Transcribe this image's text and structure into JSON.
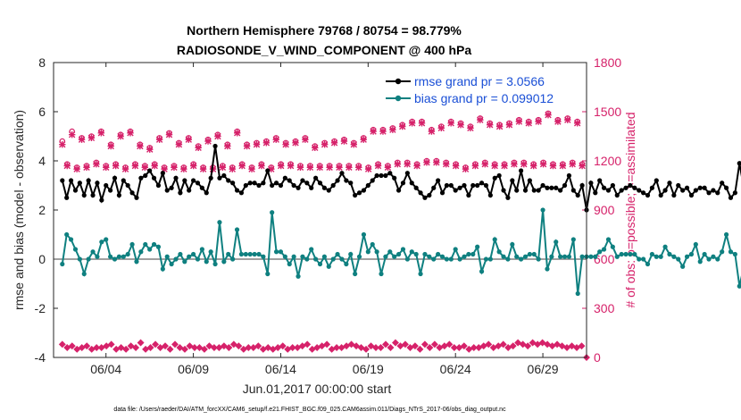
{
  "chart_data": {
    "type": "line",
    "title": "Northern Hemisphere 79768 / 80754 = 98.779%",
    "subtitle": "RADIOSONDE_V_WIND_COMPONENT @ 400 hPa",
    "xlabel": "Jun.01,2017 00:00:00 start",
    "ylabel": "rmse and bias (model - observation)",
    "y2label": "# of obs: o=possible; ×=assimilated",
    "footnote": "data file: /Users/raeder/DAI/ATM_forcXX/CAM6_setup/f.e21.FHIST_BGC.f09_025.CAM6assim.011/Diags_NTrS_2017-06/obs_diag_output.nc",
    "xlim": [
      0.5,
      31
    ],
    "ylim": [
      -4,
      8
    ],
    "y2lim": [
      0,
      1800
    ],
    "x_ticks": [
      3.5,
      8.5,
      13.5,
      18.5,
      23.5,
      28.5
    ],
    "x_tick_labels": [
      "06/04",
      "06/09",
      "06/14",
      "06/19",
      "06/24",
      "06/29"
    ],
    "y_ticks": [
      -4,
      -2,
      0,
      2,
      4,
      6,
      8
    ],
    "y_tick_labels": [
      "-4",
      "-2",
      "0",
      "2",
      "4",
      "6",
      "8"
    ],
    "y2_ticks": [
      0,
      300,
      600,
      900,
      1200,
      1500,
      1800
    ],
    "y2_tick_labels": [
      "0",
      "300",
      "600",
      "900",
      "1200",
      "1500",
      "1800"
    ],
    "grid": false,
    "legend_position": "top-right",
    "colors": {
      "rmse": "#000000",
      "bias": "#0f8080",
      "obs": "#d6226a",
      "legend_text": "#1a4fd6",
      "zero_line": "#a0a0a0"
    },
    "x_step": 0.25,
    "series": [
      {
        "name": "rmse grand pr = 3.0566",
        "color": "#000000",
        "values": [
          3.2,
          2.5,
          3.2,
          2.8,
          3.1,
          2.6,
          3.2,
          2.6,
          3.1,
          2.4,
          3.0,
          2.8,
          3.3,
          2.6,
          3.2,
          3.0,
          2.7,
          2.5,
          3.3,
          3.4,
          3.6,
          3.3,
          3.0,
          3.5,
          2.8,
          2.9,
          3.3,
          2.7,
          3.2,
          2.8,
          3.2,
          3.1,
          2.9,
          2.7,
          3.3,
          4.6,
          3.3,
          3.4,
          3.2,
          3.1,
          2.8,
          2.7,
          3.0,
          3.1,
          3.1,
          3.0,
          3.1,
          3.6,
          3.0,
          3.1,
          3.0,
          3.3,
          3.2,
          3.0,
          2.9,
          3.2,
          3.1,
          2.9,
          3.3,
          3.1,
          2.9,
          2.8,
          3.0,
          3.2,
          3.5,
          3.2,
          3.1,
          2.6,
          2.7,
          2.8,
          3.0,
          3.2,
          3.4,
          3.4,
          3.4,
          3.5,
          3.3,
          2.8,
          3.1,
          3.5,
          3.1,
          2.9,
          2.7,
          2.5,
          2.6,
          2.9,
          3.2,
          2.7,
          3.0,
          3.0,
          2.8,
          2.9,
          3.0,
          2.6,
          3.0,
          3.0,
          3.1,
          3.0,
          2.6,
          3.3,
          3.4,
          2.8,
          2.5,
          3.2,
          2.8,
          3.6,
          2.8,
          3.2,
          2.8,
          2.8,
          3.0,
          2.9,
          2.9,
          2.9,
          2.8,
          3.0,
          3.4,
          2.8,
          2.6,
          3.0,
          2.0,
          3.1,
          2.7,
          3.2,
          2.9,
          2.8,
          3.0,
          2.6,
          2.8,
          2.9,
          3.0,
          2.9,
          2.8,
          2.7,
          2.6,
          2.9,
          3.2,
          2.6,
          2.8,
          3.1,
          2.6,
          3.0,
          2.8,
          2.9,
          2.6,
          2.8,
          2.9,
          2.9,
          2.7,
          2.8,
          2.7,
          3.1,
          2.9,
          2.5,
          2.7,
          3.9,
          2.9,
          2.8,
          3.1,
          3.4,
          3.4,
          3.0,
          2.4,
          3.3,
          4.5,
          2.8,
          2.9,
          2.9,
          2.9,
          3.1,
          3.0,
          2.7,
          3.0,
          2.9,
          2.4,
          2.9,
          2.8,
          2.8,
          2.8,
          3.2,
          2.6,
          2.8,
          2.9,
          3.0,
          2.7,
          3.1,
          3.0,
          2.6,
          2.8,
          2.9,
          2.8,
          2.8,
          2.9,
          2.9,
          2.9,
          2.7,
          2.5,
          2.8,
          3.0,
          3.0,
          2.7,
          2.6,
          2.9,
          2.8,
          2.9,
          3.0,
          3.0,
          3.1,
          3.0,
          3.0,
          2.9,
          2.7,
          2.9,
          2.8,
          3.1,
          2.9,
          3.2,
          3.4,
          2.9,
          3.1,
          3.0,
          2.8,
          2.7,
          2.6
        ]
      },
      {
        "name": "bias grand pr = 0.099012",
        "color": "#0f8080",
        "values": [
          -0.2,
          1.0,
          0.8,
          0.4,
          0.0,
          -0.6,
          0.0,
          0.3,
          0.1,
          0.7,
          0.8,
          0.1,
          0.0,
          0.1,
          0.1,
          0.2,
          0.6,
          -0.1,
          0.3,
          0.6,
          0.4,
          0.6,
          0.5,
          -0.4,
          0.1,
          -0.2,
          0.0,
          0.2,
          -0.1,
          0.1,
          0.2,
          0.0,
          0.4,
          -0.1,
          0.3,
          -0.2,
          1.5,
          -0.1,
          0.2,
          0.0,
          1.2,
          0.2,
          0.2,
          0.2,
          0.2,
          0.2,
          0.1,
          -0.6,
          1.9,
          0.3,
          0.3,
          0.1,
          -0.2,
          0.1,
          -0.7,
          0.1,
          0.0,
          0.4,
          0.0,
          -0.2,
          0.1,
          -0.3,
          0.0,
          0.2,
          0.0,
          -0.2,
          0.2,
          -0.6,
          0.1,
          1.0,
          0.3,
          0.6,
          0.3,
          -0.6,
          0.1,
          0.3,
          0.1,
          0.2,
          0.4,
          0.0,
          0.3,
          0.2,
          -0.6,
          0.2,
          0.1,
          0.0,
          0.2,
          0.1,
          0.0,
          0.0,
          0.4,
          0.0,
          0.1,
          0.2,
          0.2,
          0.5,
          -0.5,
          0.0,
          0.0,
          0.8,
          0.3,
          0.1,
          0.0,
          0.6,
          0.1,
          0.0,
          0.1,
          0.2,
          0.2,
          0.0,
          2.0,
          -0.4,
          0.1,
          0.7,
          0.1,
          0.1,
          0.1,
          0.8,
          -1.4,
          0.1,
          0.1,
          0.1,
          0.1,
          0.3,
          0.4,
          0.8,
          0.5,
          0.1,
          0.2,
          0.2,
          0.2,
          0.2,
          0.0,
          0.0,
          -0.2,
          0.2,
          0.1,
          0.1,
          0.5,
          0.2,
          0.1,
          0.0,
          -0.3,
          0.1,
          0.2,
          0.6,
          -0.1,
          0.2,
          0.0,
          0.1,
          0.0,
          0.3,
          1.0,
          0.3,
          0.2,
          -1.1,
          -0.3,
          0.3,
          0.5,
          1.4,
          0.3,
          0.1,
          0.1,
          0.2,
          -0.1,
          0.3,
          0.2,
          0.1,
          0.4,
          1.1,
          -0.1,
          0.6,
          0.3,
          0.1,
          -0.2,
          -0.2,
          0.3,
          0.1,
          0.2,
          0.0,
          0.3,
          0.3,
          0.2,
          0.1,
          -0.1,
          0.1,
          0.2,
          0.4,
          0.0,
          0.1,
          0.0,
          0.7,
          0.1,
          0.2,
          0.1,
          0.0,
          0.2,
          0.2,
          -0.1,
          0.2,
          0.0,
          0.4,
          0.3,
          0.1,
          0.1,
          0.0,
          -0.4,
          0.0,
          0.3,
          0.2,
          0.1,
          0.2,
          0.1,
          0.4,
          0.0,
          0.1,
          0.1,
          0.2,
          0.4,
          -0.2,
          0.4,
          0.6,
          0.4,
          0.5,
          0.2,
          0.2,
          -0.9,
          -0.9,
          -0.9,
          -0.9
        ]
      }
    ],
    "obs_possible": [
      1320,
      1180,
      1380,
      1160,
      1340,
      1170,
      1350,
      1190,
      1380,
      1170,
      1300,
      1180,
      1360,
      1160,
      1380,
      1180,
      1300,
      1170,
      1280,
      1180,
      1340,
      1160,
      1370,
      1170,
      1310,
      1160,
      1340,
      1180,
      1290,
      1160,
      1330,
      1160,
      1360,
      1170,
      1300,
      1160,
      1380,
      1180,
      1300,
      1160,
      1310,
      1180,
      1320,
      1160,
      1340,
      1180,
      1310,
      1180,
      1320,
      1170,
      1340,
      1170,
      1290,
      1170,
      1310,
      1170,
      1320,
      1170,
      1330,
      1170,
      1310,
      1170,
      1340,
      1160,
      1390,
      1180,
      1390,
      1170,
      1400,
      1190,
      1420,
      1190,
      1440,
      1180,
      1440,
      1200,
      1390,
      1200,
      1410,
      1190,
      1440,
      1180,
      1430,
      1160,
      1410,
      1180,
      1460,
      1190,
      1430,
      1180,
      1420,
      1180,
      1430,
      1190,
      1450,
      1190,
      1440,
      1180,
      1450,
      1190,
      1490,
      1180,
      1450,
      1180,
      1460,
      1190,
      1440,
      1180
    ],
    "obs_assimilated": [
      1300,
      1170,
      1360,
      1150,
      1330,
      1160,
      1340,
      1180,
      1370,
      1160,
      1290,
      1170,
      1350,
      1150,
      1370,
      1170,
      1290,
      1160,
      1270,
      1170,
      1330,
      1150,
      1360,
      1160,
      1300,
      1150,
      1330,
      1170,
      1280,
      1150,
      1320,
      1150,
      1350,
      1160,
      1290,
      1150,
      1370,
      1170,
      1290,
      1150,
      1300,
      1170,
      1310,
      1150,
      1330,
      1170,
      1300,
      1170,
      1310,
      1160,
      1330,
      1160,
      1280,
      1160,
      1300,
      1160,
      1310,
      1160,
      1320,
      1160,
      1300,
      1160,
      1330,
      1150,
      1380,
      1170,
      1380,
      1160,
      1390,
      1180,
      1410,
      1180,
      1430,
      1170,
      1430,
      1190,
      1380,
      1190,
      1400,
      1180,
      1430,
      1170,
      1420,
      1150,
      1400,
      1170,
      1450,
      1180,
      1420,
      1170,
      1410,
      1170,
      1420,
      1180,
      1440,
      1180,
      1430,
      1170,
      1440,
      1180,
      1480,
      1170,
      1440,
      1170,
      1450,
      1180,
      1430,
      1170
    ],
    "obs_bottom": [
      80,
      60,
      70,
      50,
      60,
      70,
      50,
      60,
      60,
      70,
      80,
      50,
      60,
      50,
      70,
      60,
      90,
      50,
      60,
      80,
      60,
      70,
      50,
      80,
      60,
      50,
      70,
      60,
      60,
      50,
      70,
      60,
      60,
      70,
      60,
      80,
      70,
      50,
      60,
      60,
      70,
      50,
      60,
      50,
      60,
      70,
      50,
      60,
      60,
      70,
      80,
      50,
      60,
      70,
      80,
      50,
      60,
      60,
      70,
      80,
      70,
      60,
      50,
      70,
      60,
      60,
      80,
      60,
      90,
      70,
      80,
      60,
      70,
      50,
      80,
      60,
      80,
      60,
      70,
      80,
      60,
      60,
      70,
      50,
      60,
      60,
      70,
      80,
      60,
      70,
      80,
      60,
      70,
      90,
      80,
      70,
      90,
      80,
      90,
      80,
      70,
      80,
      70,
      60,
      70,
      60,
      70,
      0
    ]
  }
}
